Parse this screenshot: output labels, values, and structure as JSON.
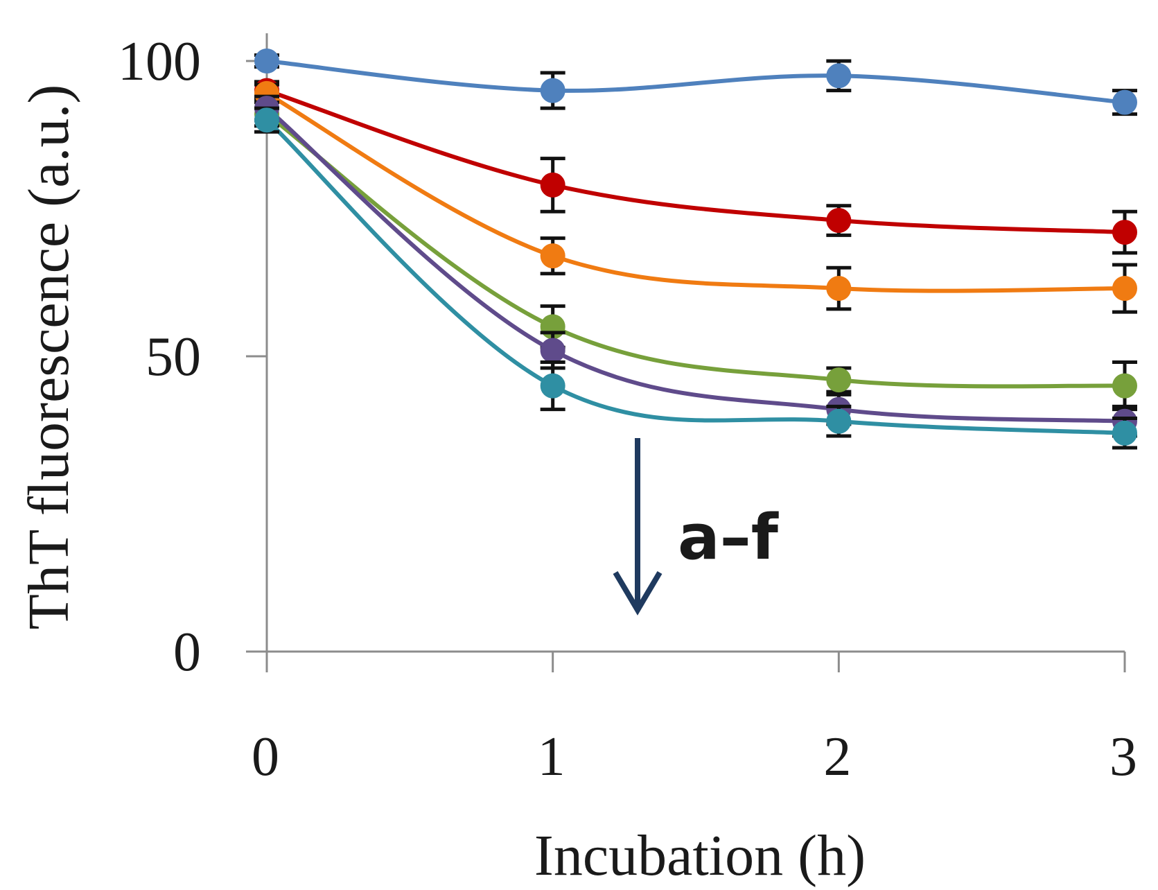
{
  "chart_data": {
    "type": "line",
    "title": "",
    "xlabel": "Incubation (h)",
    "ylabel": "ThT fluorescence (a.u.)",
    "x": [
      0,
      1,
      2,
      3
    ],
    "xlim": [
      0,
      3
    ],
    "ylim": [
      0,
      100
    ],
    "xticks": [
      "0",
      "1",
      "2",
      "3"
    ],
    "yticks": [
      "0",
      "50",
      "100"
    ],
    "grid": false,
    "series": [
      {
        "name": "blue",
        "color": "#4f81bd",
        "values": [
          100,
          95,
          97.5,
          93
        ],
        "errors": [
          1,
          3,
          2.5,
          2
        ]
      },
      {
        "name": "red",
        "color": "#c00000",
        "values": [
          95,
          79,
          73,
          71
        ],
        "errors": [
          1.5,
          4.5,
          2.5,
          3.5
        ]
      },
      {
        "name": "orange",
        "color": "#f07b12",
        "values": [
          94.5,
          67,
          61.5,
          61.5
        ],
        "errors": [
          1.5,
          3,
          3.5,
          4
        ]
      },
      {
        "name": "green",
        "color": "#77a03b",
        "values": [
          91,
          55,
          46,
          45
        ],
        "errors": [
          2,
          3.5,
          2,
          4
        ]
      },
      {
        "name": "purple",
        "color": "#5f4b8b",
        "values": [
          92,
          51,
          41,
          39
        ],
        "errors": [
          2,
          3,
          2.5,
          2.5
        ]
      },
      {
        "name": "teal",
        "color": "#2f8fa3",
        "values": [
          90,
          45,
          39,
          37
        ],
        "errors": [
          2,
          4,
          2.5,
          2.5
        ]
      }
    ],
    "annotation": {
      "text": "a–f",
      "arrow": "down",
      "color": "#1f3a5f"
    }
  }
}
